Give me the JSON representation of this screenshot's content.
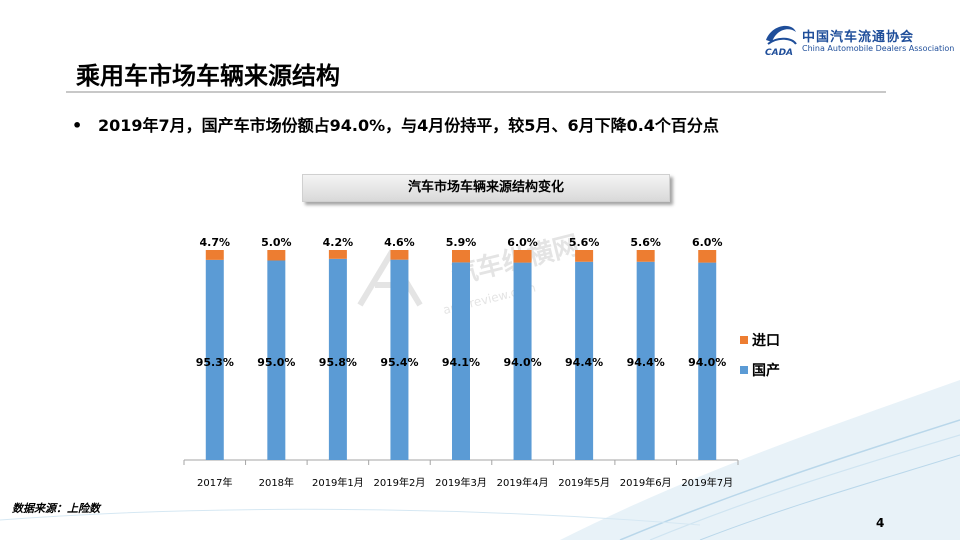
{
  "header": {
    "title": "乘用车市场车辆来源结构",
    "bullet": "2019年7月，国产车市场份额占94.0%，与4月份持平，较5月、6月下降0.4个百分点"
  },
  "logo": {
    "name_cn": "中国汽车流通协会",
    "name_en": "China Automobile Dealers Association",
    "mark_text": "CADA"
  },
  "watermark": {
    "text": "汽车纵横网",
    "url": "autoreview.com"
  },
  "footer": {
    "source": "数据来源：上险数",
    "page": "4"
  },
  "colors": {
    "domestic": "#5b9bd5",
    "import": "#ed7d31",
    "accent": "#1f4e9a"
  },
  "chart_data": {
    "type": "bar",
    "stacked": true,
    "percent": true,
    "title": "汽车市场车辆来源结构变化",
    "categories": [
      "2017年",
      "2018年",
      "2019年1月",
      "2019年2月",
      "2019年3月",
      "2019年4月",
      "2019年5月",
      "2019年6月",
      "2019年7月"
    ],
    "series": [
      {
        "name": "国产",
        "color": "#5b9bd5",
        "values": [
          95.3,
          95.0,
          95.8,
          95.4,
          94.1,
          94.0,
          94.4,
          94.4,
          94.0
        ],
        "labels": [
          "95.3%",
          "95.0%",
          "95.8%",
          "95.4%",
          "94.1%",
          "94.0%",
          "94.4%",
          "94.4%",
          "94.0%"
        ]
      },
      {
        "name": "进口",
        "color": "#ed7d31",
        "values": [
          4.7,
          5.0,
          4.2,
          4.6,
          5.9,
          6.0,
          5.6,
          5.6,
          6.0
        ],
        "labels": [
          "4.7%",
          "5.0%",
          "4.2%",
          "4.6%",
          "5.9%",
          "6.0%",
          "5.6%",
          "5.6%",
          "6.0%"
        ]
      }
    ],
    "legend": [
      "进口",
      "国产"
    ],
    "legend_position": "right",
    "ylim": [
      0,
      100
    ],
    "grid": false
  }
}
